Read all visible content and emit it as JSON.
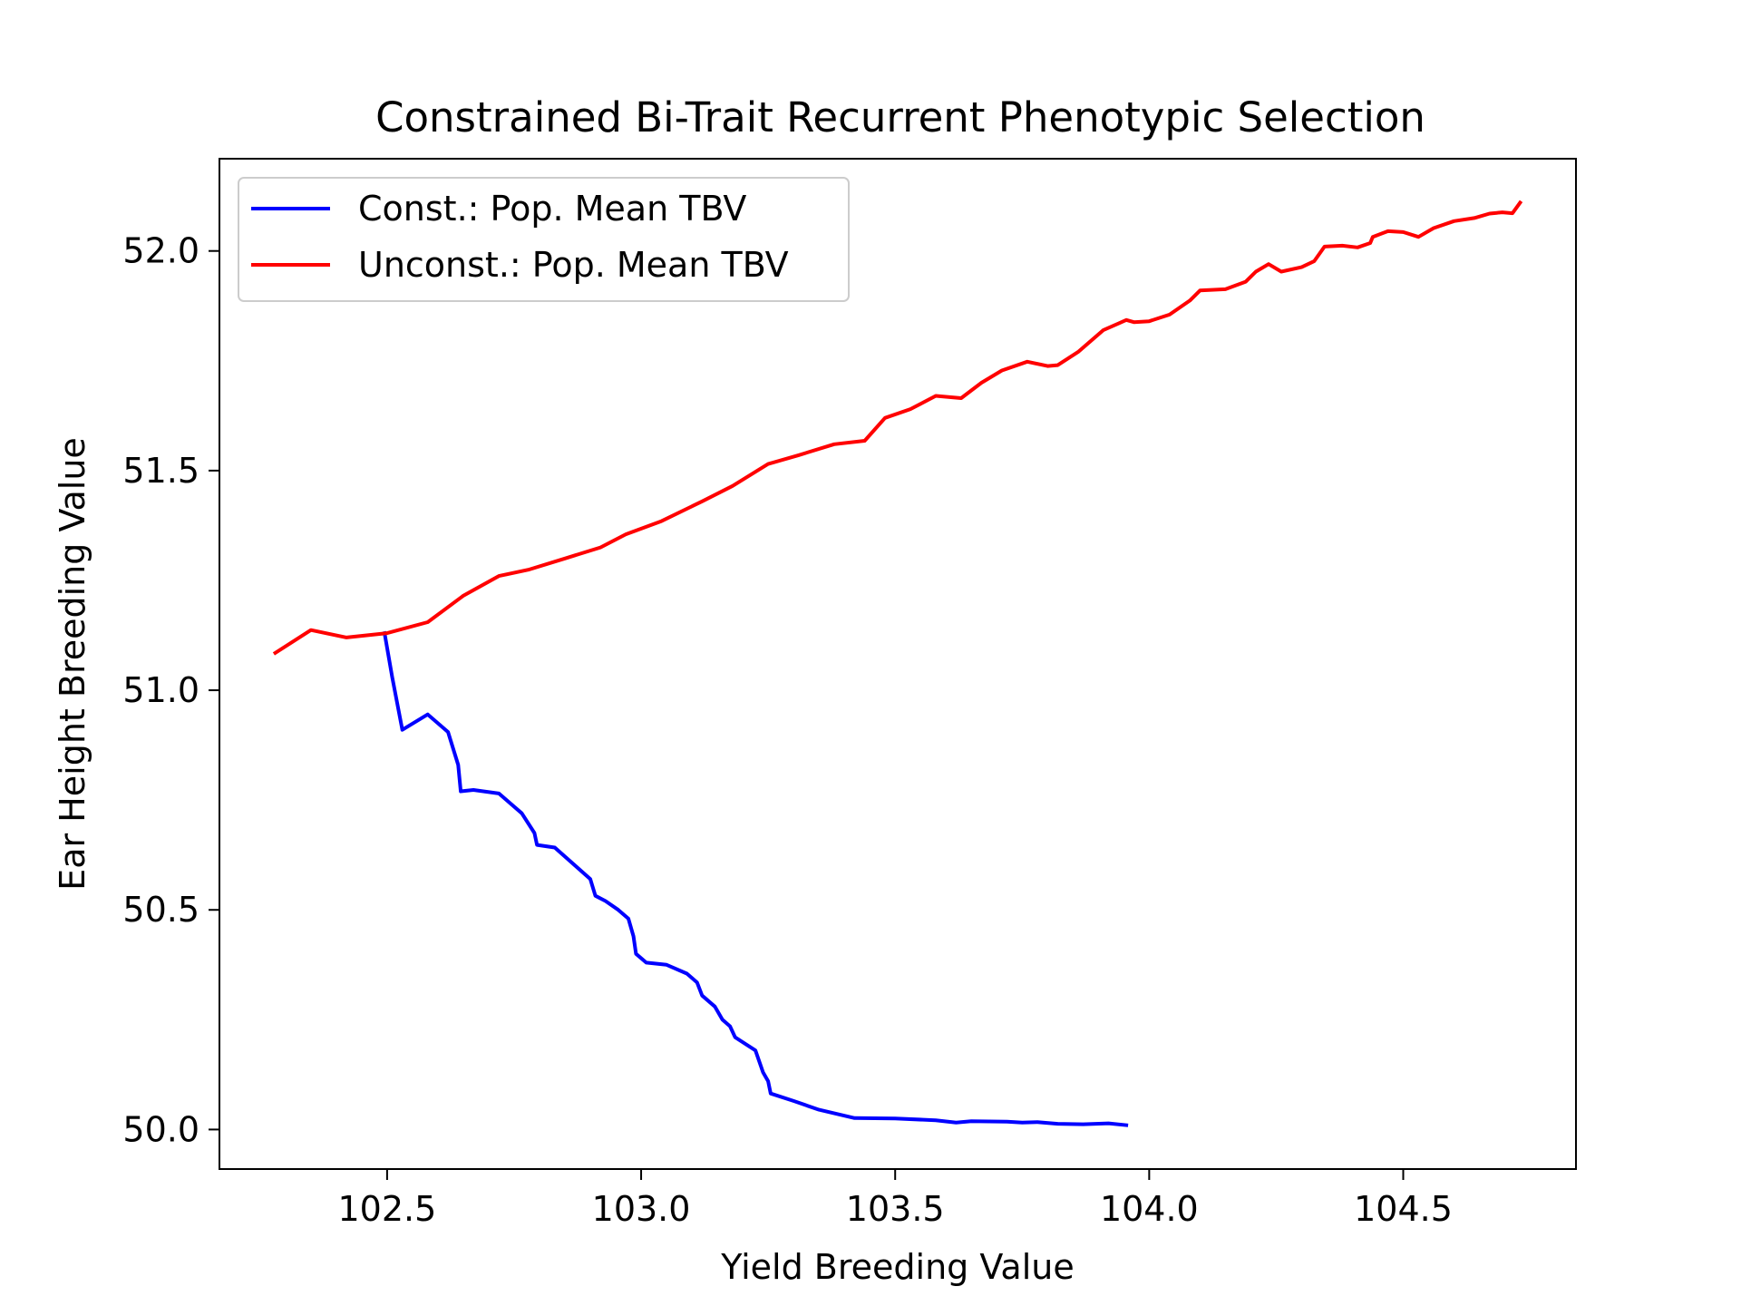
{
  "chart_data": {
    "type": "line",
    "title": "Constrained Bi-Trait Recurrent Phenotypic Selection",
    "xlabel": "Yield Breeding Value",
    "ylabel": "Ear Height Breeding Value",
    "xlim": [
      102.17,
      104.84
    ],
    "ylim": [
      49.91,
      52.21
    ],
    "xticks": [
      102.5,
      103.0,
      103.5,
      104.0,
      104.5
    ],
    "xtick_labels": [
      "102.5",
      "103.0",
      "103.5",
      "104.0",
      "104.5"
    ],
    "yticks": [
      50.0,
      50.5,
      51.0,
      51.5,
      52.0
    ],
    "ytick_labels": [
      "50.0",
      "50.5",
      "51.0",
      "51.5",
      "52.0"
    ],
    "grid": false,
    "legend_position": "upper-left",
    "series": [
      {
        "name": "Const.: Pop. Mean TBV",
        "color": "#0000ff",
        "points": [
          [
            102.495,
            51.13
          ],
          [
            102.51,
            51.03
          ],
          [
            102.52,
            50.97
          ],
          [
            102.53,
            50.91
          ],
          [
            102.58,
            50.945
          ],
          [
            102.62,
            50.905
          ],
          [
            102.64,
            50.83
          ],
          [
            102.645,
            50.77
          ],
          [
            102.67,
            50.773
          ],
          [
            102.72,
            50.765
          ],
          [
            102.765,
            50.72
          ],
          [
            102.79,
            50.675
          ],
          [
            102.795,
            50.648
          ],
          [
            102.83,
            50.642
          ],
          [
            102.9,
            50.57
          ],
          [
            102.91,
            50.532
          ],
          [
            102.93,
            50.52
          ],
          [
            102.955,
            50.5
          ],
          [
            102.975,
            50.48
          ],
          [
            102.985,
            50.44
          ],
          [
            102.99,
            50.4
          ],
          [
            103.01,
            50.38
          ],
          [
            103.05,
            50.375
          ],
          [
            103.09,
            50.355
          ],
          [
            103.11,
            50.335
          ],
          [
            103.12,
            50.305
          ],
          [
            103.145,
            50.28
          ],
          [
            103.16,
            50.25
          ],
          [
            103.175,
            50.235
          ],
          [
            103.185,
            50.21
          ],
          [
            103.225,
            50.18
          ],
          [
            103.24,
            50.13
          ],
          [
            103.25,
            50.11
          ],
          [
            103.255,
            50.082
          ],
          [
            103.3,
            50.065
          ],
          [
            103.35,
            50.045
          ],
          [
            103.42,
            50.026
          ],
          [
            103.5,
            50.025
          ],
          [
            103.58,
            50.021
          ],
          [
            103.62,
            50.016
          ],
          [
            103.65,
            50.019
          ],
          [
            103.72,
            50.018
          ],
          [
            103.75,
            50.016
          ],
          [
            103.78,
            50.017
          ],
          [
            103.82,
            50.013
          ],
          [
            103.87,
            50.012
          ],
          [
            103.92,
            50.014
          ],
          [
            103.955,
            50.01
          ]
        ]
      },
      {
        "name": "Unconst.: Pop. Mean TBV",
        "color": "#ff0000",
        "points": [
          [
            102.28,
            51.085
          ],
          [
            102.35,
            51.137
          ],
          [
            102.42,
            51.12
          ],
          [
            102.5,
            51.13
          ],
          [
            102.58,
            51.155
          ],
          [
            102.65,
            51.215
          ],
          [
            102.72,
            51.26
          ],
          [
            102.78,
            51.275
          ],
          [
            102.85,
            51.3
          ],
          [
            102.92,
            51.325
          ],
          [
            102.97,
            51.355
          ],
          [
            103.04,
            51.385
          ],
          [
            103.12,
            51.43
          ],
          [
            103.18,
            51.465
          ],
          [
            103.25,
            51.515
          ],
          [
            103.31,
            51.535
          ],
          [
            103.38,
            51.56
          ],
          [
            103.44,
            51.568
          ],
          [
            103.48,
            51.62
          ],
          [
            103.53,
            51.64
          ],
          [
            103.58,
            51.67
          ],
          [
            103.63,
            51.665
          ],
          [
            103.67,
            51.7
          ],
          [
            103.71,
            51.728
          ],
          [
            103.76,
            51.748
          ],
          [
            103.8,
            51.738
          ],
          [
            103.82,
            51.74
          ],
          [
            103.86,
            51.77
          ],
          [
            103.91,
            51.82
          ],
          [
            103.94,
            51.835
          ],
          [
            103.955,
            51.843
          ],
          [
            103.97,
            51.838
          ],
          [
            104.0,
            51.84
          ],
          [
            104.04,
            51.855
          ],
          [
            104.08,
            51.887
          ],
          [
            104.1,
            51.91
          ],
          [
            104.15,
            51.913
          ],
          [
            104.19,
            51.93
          ],
          [
            104.21,
            51.953
          ],
          [
            104.235,
            51.97
          ],
          [
            104.26,
            51.953
          ],
          [
            104.3,
            51.963
          ],
          [
            104.325,
            51.977
          ],
          [
            104.345,
            52.01
          ],
          [
            104.38,
            52.012
          ],
          [
            104.41,
            52.008
          ],
          [
            104.435,
            52.018
          ],
          [
            104.44,
            52.032
          ],
          [
            104.47,
            52.045
          ],
          [
            104.5,
            52.043
          ],
          [
            104.53,
            52.032
          ],
          [
            104.56,
            52.052
          ],
          [
            104.6,
            52.068
          ],
          [
            104.64,
            52.075
          ],
          [
            104.67,
            52.085
          ],
          [
            104.695,
            52.088
          ],
          [
            104.715,
            52.086
          ],
          [
            104.73,
            52.11
          ]
        ]
      }
    ]
  }
}
